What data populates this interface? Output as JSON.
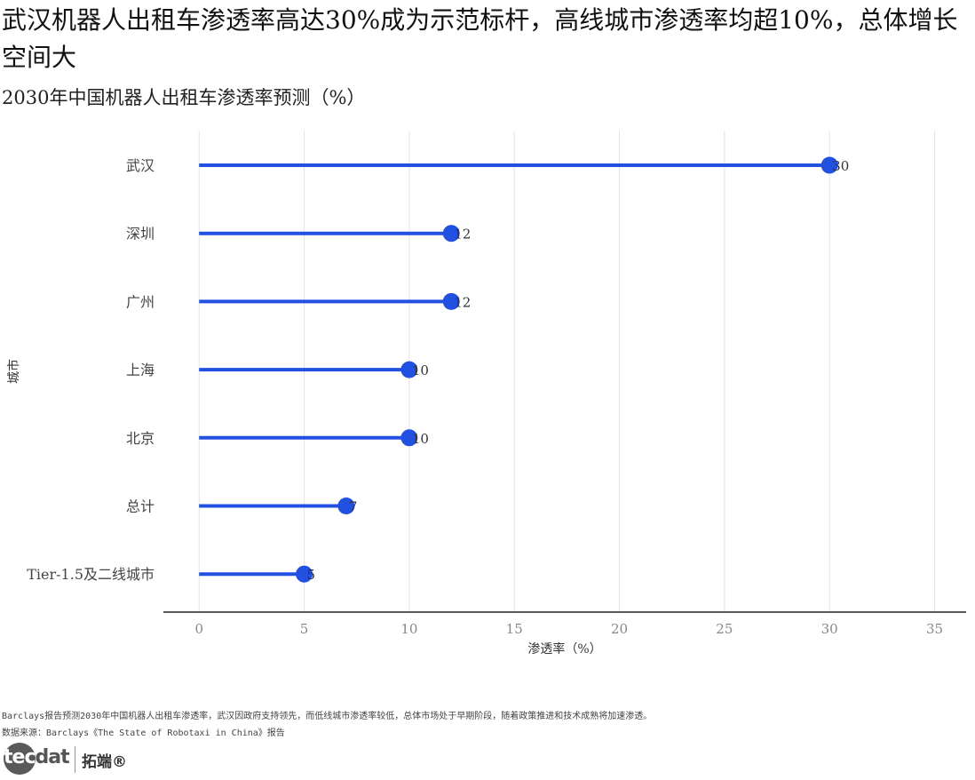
{
  "title": "武汉机器人出租车渗透率高达30%成为示范标杆，高线城市渗透率均超10%，总体增长空间大",
  "subtitle": "2030年中国机器人出租车渗透率预测（%）",
  "caption_line1": "Barclays报告预测2030年中国机器人出租车渗透率，武汉因政府支持领先，而低线城市渗透率较低，总体市场处于早期阶段，随着政策推进和技术成熟将加速渗透。",
  "caption_line2": "数据来源：Barclays《The State of Robotaxi in China》报告",
  "logo": {
    "part1": "tec",
    "part2": "dat",
    "cn": "拓端®"
  },
  "colors": {
    "accent": "#2250e0",
    "grid": "#e3e3e3",
    "axis": "#222222",
    "tick_text": "#888888"
  },
  "chart_data": {
    "type": "lollipop",
    "orientation": "horizontal",
    "categories": [
      "武汉",
      "深圳",
      "广州",
      "上海",
      "北京",
      "总计",
      "Tier-1.5及二线城市"
    ],
    "values": [
      30,
      12,
      12,
      10,
      10,
      7,
      5
    ],
    "data_labels": [
      "30",
      "12",
      "12",
      "10",
      "10",
      "7",
      "5"
    ],
    "xlabel": "渗透率（%）",
    "ylabel": "城市",
    "xlim": [
      -1.7,
      36.5
    ],
    "xticks": [
      0,
      5,
      10,
      15,
      20,
      25,
      30,
      35
    ],
    "grid": "vertical"
  }
}
